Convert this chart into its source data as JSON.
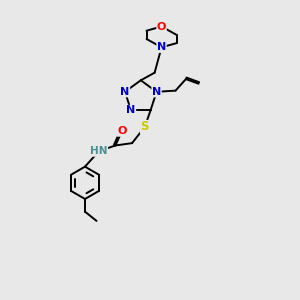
{
  "background_color": "#e8e8e8",
  "atom_colors": {
    "N": "#0000cc",
    "O": "#ff0000",
    "S": "#cccc00",
    "C": "#000000",
    "H": "#4a9090"
  },
  "figsize": [
    3.0,
    3.0
  ],
  "dpi": 100
}
